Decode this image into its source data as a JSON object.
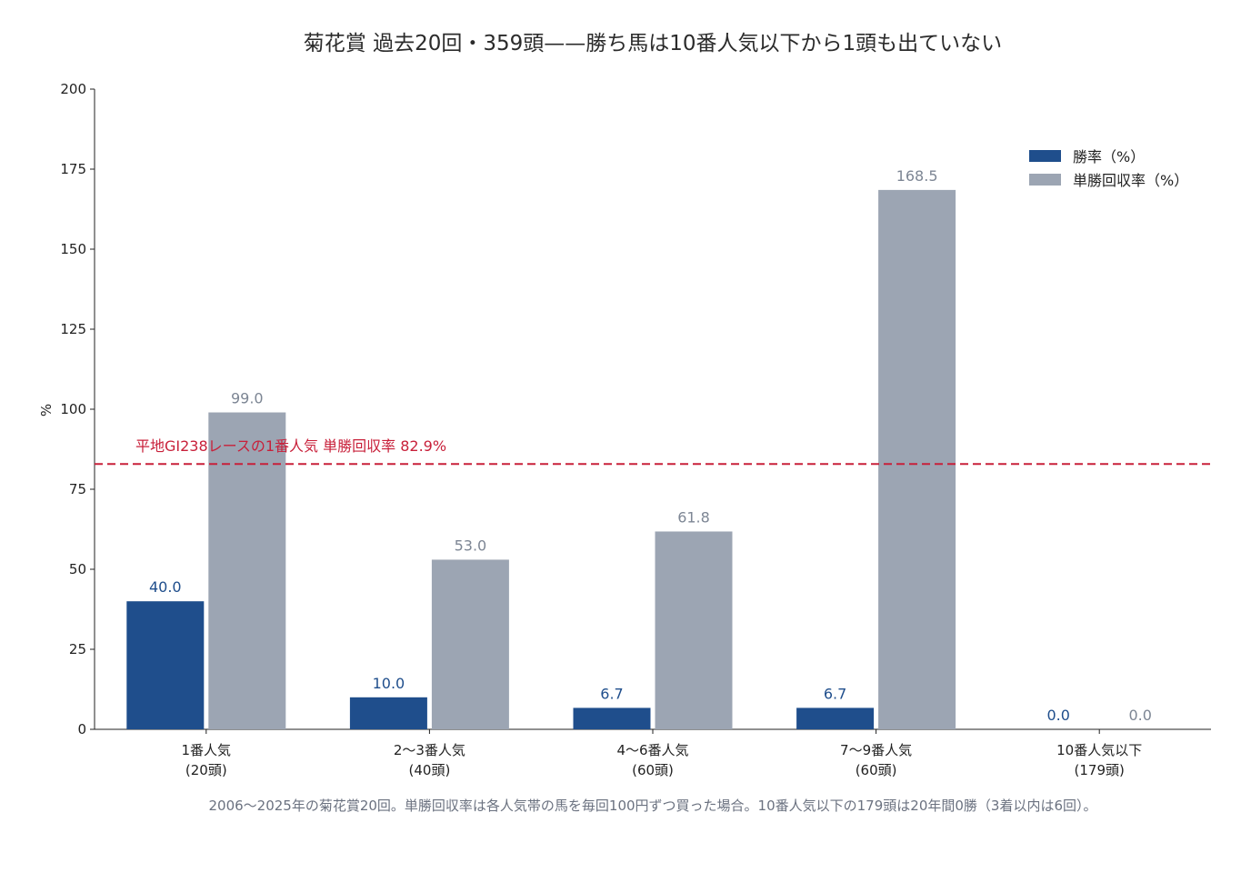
{
  "chart_data": {
    "type": "bar",
    "title": "菊花賞 過去20回・359頭——勝ち馬は10番人気以下から1頭も出ていない",
    "ylabel": "%",
    "xlabel": "",
    "ylim": [
      0,
      200
    ],
    "yticks": [
      "0",
      "25",
      "50",
      "75",
      "100",
      "125",
      "150",
      "175",
      "200"
    ],
    "categories": [
      {
        "line1": "1番人気",
        "line2": "(20頭)"
      },
      {
        "line1": "2〜3番人気",
        "line2": "(40頭)"
      },
      {
        "line1": "4〜6番人気",
        "line2": "(60頭)"
      },
      {
        "line1": "7〜9番人気",
        "line2": "(60頭)"
      },
      {
        "line1": "10番人気以下",
        "line2": "(179頭)"
      }
    ],
    "series": [
      {
        "name": "勝率（%）",
        "color": "#1f4e8c",
        "label_color": "#1f4e8c",
        "values": [
          40.0,
          10.0,
          6.7,
          6.7,
          0.0
        ],
        "labels": [
          "40.0",
          "10.0",
          "6.7",
          "6.7",
          "0.0"
        ]
      },
      {
        "name": "単勝回収率（%）",
        "color": "#9ca5b3",
        "label_color": "#7d8694",
        "values": [
          99.0,
          53.0,
          61.8,
          168.5,
          0.0
        ],
        "labels": [
          "99.0",
          "53.0",
          "61.8",
          "168.5",
          "0.0"
        ]
      }
    ],
    "reference_line": {
      "value": 82.9,
      "label": "平地GⅠ238レースの1番人気 単勝回収率 82.9%",
      "color": "#c8203a",
      "style": "dashed"
    },
    "legend_position": "top-right",
    "grid": false,
    "note": "2006〜2025年の菊花賞20回。単勝回収率は各人気帯の馬を毎回100円ずつ買った場合。10番人気以下の179頭は20年間0勝（3着以内は6回）。"
  }
}
